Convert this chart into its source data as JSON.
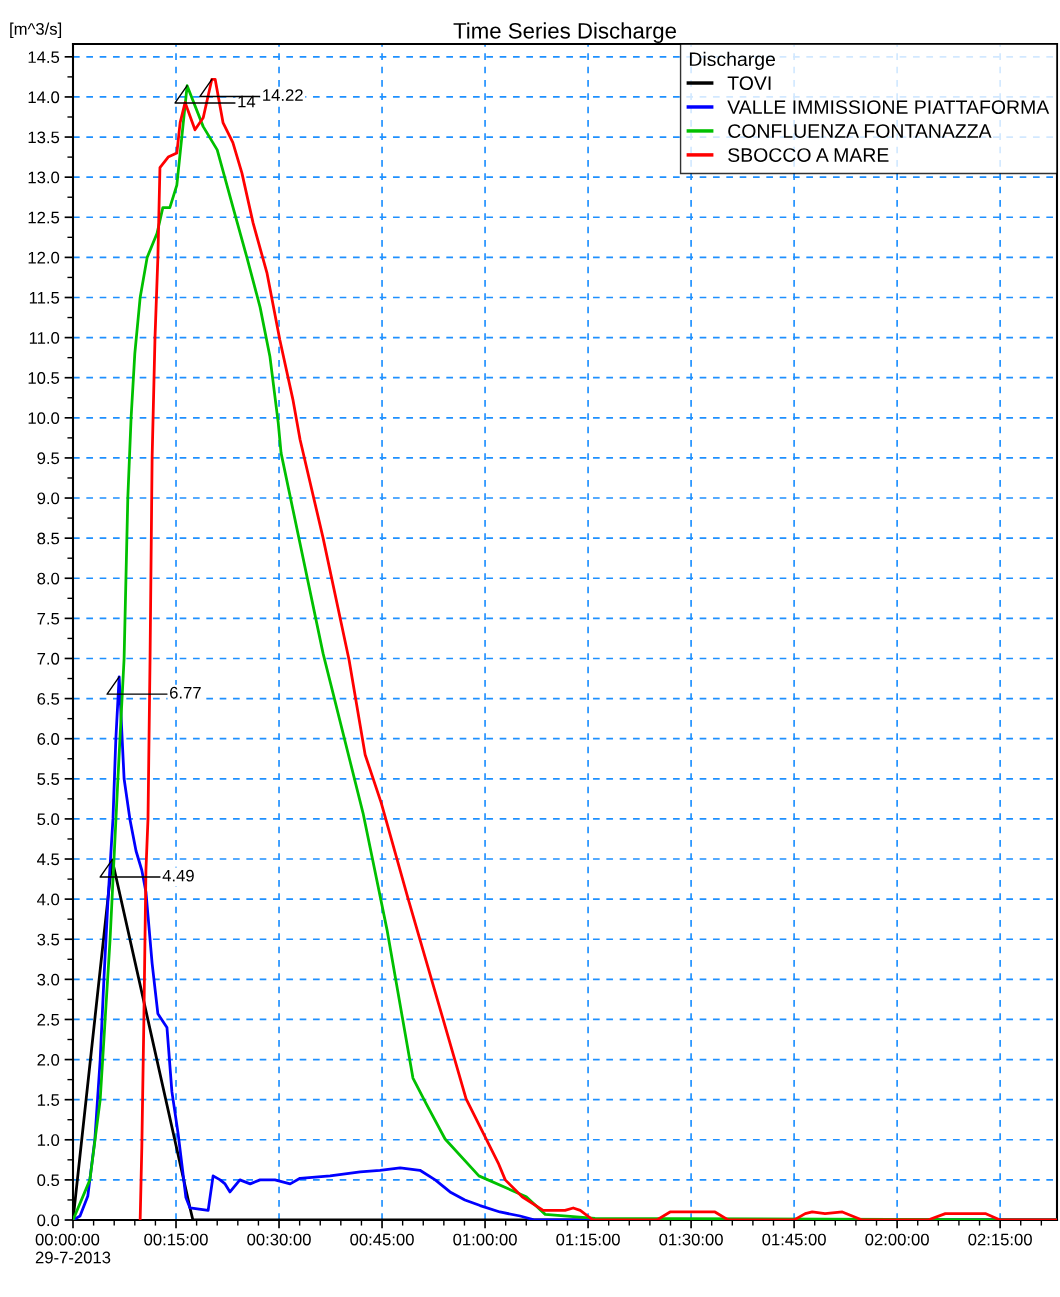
{
  "chart_data": {
    "type": "line",
    "title": "Time Series Discharge",
    "ylabel": "[m^3/s]",
    "legend_title": "Discharge",
    "legend": "top right",
    "grid": true,
    "line_style": "solid",
    "marker": "none",
    "xlim": [
      0,
      2.388
    ],
    "ylim": [
      0,
      14.66
    ],
    "xticks": [
      {
        "value": 0,
        "label": "00:00:00\n29-7-2013"
      },
      {
        "value": 0.25,
        "label": "00:15:00"
      },
      {
        "value": 0.5,
        "label": "00:30:00"
      },
      {
        "value": 0.75,
        "label": "00:45:00"
      },
      {
        "value": 1,
        "label": "01:00:00"
      },
      {
        "value": 1.25,
        "label": "01:15:00"
      },
      {
        "value": 1.5,
        "label": "01:30:00"
      },
      {
        "value": 1.75,
        "label": "01:45:00"
      },
      {
        "value": 2,
        "label": "02:00:00"
      },
      {
        "value": 2.25,
        "label": "02:15:00"
      }
    ],
    "yticks": [
      {
        "value": 0,
        "label": "0.0"
      },
      {
        "value": 0.5,
        "label": "0.5"
      },
      {
        "value": 1,
        "label": "1.0"
      },
      {
        "value": 1.5,
        "label": "1.5"
      },
      {
        "value": 2,
        "label": "2.0"
      },
      {
        "value": 2.5,
        "label": "2.5"
      },
      {
        "value": 3,
        "label": "3.0"
      },
      {
        "value": 3.5,
        "label": "3.5"
      },
      {
        "value": 4,
        "label": "4.0"
      },
      {
        "value": 4.5,
        "label": "4.5"
      },
      {
        "value": 5,
        "label": "5.0"
      },
      {
        "value": 5.5,
        "label": "5.5"
      },
      {
        "value": 6,
        "label": "6.0"
      },
      {
        "value": 6.5,
        "label": "6.5"
      },
      {
        "value": 7,
        "label": "7.0"
      },
      {
        "value": 7.5,
        "label": "7.5"
      },
      {
        "value": 8,
        "label": "8.0"
      },
      {
        "value": 8.5,
        "label": "8.5"
      },
      {
        "value": 9,
        "label": "9.0"
      },
      {
        "value": 9.5,
        "label": "9.5"
      },
      {
        "value": 10,
        "label": "10.0"
      },
      {
        "value": 10.5,
        "label": "10.5"
      },
      {
        "value": 11,
        "label": "11.0"
      },
      {
        "value": 11.5,
        "label": "11.5"
      },
      {
        "value": 12,
        "label": "12.0"
      },
      {
        "value": 12.5,
        "label": "12.5"
      },
      {
        "value": 13,
        "label": "13.0"
      },
      {
        "value": 13.5,
        "label": "13.5"
      },
      {
        "value": 14,
        "label": "14.0"
      },
      {
        "value": 14.5,
        "label": "14.5"
      }
    ],
    "series": [
      {
        "name": "TOVI",
        "color": "#000000",
        "x": [
          0,
          0.095,
          0.284,
          0.291,
          2.388
        ],
        "values": [
          0,
          4.49,
          0.15,
          0,
          0
        ]
      },
      {
        "name": "VALLE IMMISSIONE PIATTAFORMA",
        "color": "#0000ff",
        "x": [
          0,
          0.017,
          0.036,
          0.053,
          0.066,
          0.075,
          0.085,
          0.097,
          0.104,
          0.112,
          0.124,
          0.138,
          0.153,
          0.167,
          0.177,
          0.192,
          0.206,
          0.228,
          0.24,
          0.255,
          0.274,
          0.284,
          0.328,
          0.34,
          0.357,
          0.369,
          0.381,
          0.405,
          0.43,
          0.454,
          0.49,
          0.527,
          0.551,
          0.624,
          0.697,
          0.745,
          0.794,
          0.842,
          0.879,
          0.915,
          0.951,
          0.988,
          1.036,
          1.085,
          1.121,
          2.388
        ],
        "values": [
          0,
          0.05,
          0.3,
          1.0,
          2.0,
          3.0,
          4.0,
          5.0,
          6.0,
          6.77,
          5.5,
          5.0,
          4.6,
          4.36,
          4.09,
          3.2,
          2.57,
          2.4,
          1.6,
          1.08,
          0.28,
          0.15,
          0.12,
          0.55,
          0.5,
          0.45,
          0.35,
          0.5,
          0.45,
          0.5,
          0.5,
          0.45,
          0.52,
          0.55,
          0.6,
          0.62,
          0.65,
          0.62,
          0.5,
          0.35,
          0.25,
          0.18,
          0.1,
          0.05,
          0,
          0
        ]
      },
      {
        "name": "CONFLUENZA FONTANAZZA",
        "color": "#00c000",
        "x": [
          0,
          0.041,
          0.066,
          0.09,
          0.109,
          0.124,
          0.133,
          0.141,
          0.15,
          0.163,
          0.18,
          0.204,
          0.218,
          0.235,
          0.252,
          0.277,
          0.316,
          0.35,
          0.388,
          0.422,
          0.454,
          0.478,
          0.498,
          0.505,
          0.607,
          0.704,
          0.762,
          0.825,
          0.857,
          0.903,
          0.985,
          1.1,
          1.146,
          1.267,
          2.388
        ],
        "values": [
          0,
          0.5,
          1.5,
          3.5,
          5.5,
          7.0,
          9.0,
          10.0,
          10.8,
          11.5,
          12.0,
          12.3,
          12.62,
          12.62,
          12.9,
          14.14,
          13.63,
          13.34,
          12.63,
          12.0,
          11.38,
          10.76,
          9.94,
          9.56,
          7.06,
          5.07,
          3.62,
          1.77,
          1.45,
          1.01,
          0.55,
          0.29,
          0.07,
          0.02,
          0
        ]
      },
      {
        "name": "SBOCCO A MARE",
        "color": "#ff0000",
        "x": [
          0.163,
          0.167,
          0.172,
          0.177,
          0.182,
          0.187,
          0.192,
          0.199,
          0.206,
          0.211,
          0.231,
          0.252,
          0.26,
          0.272,
          0.296,
          0.316,
          0.337,
          0.345,
          0.364,
          0.388,
          0.41,
          0.437,
          0.471,
          0.502,
          0.534,
          0.551,
          0.607,
          0.67,
          0.709,
          0.748,
          0.813,
          0.891,
          0.954,
          1.032,
          1.049,
          1.09,
          1.141,
          1.194,
          1.214,
          1.231,
          1.262,
          1.417,
          1.449,
          1.558,
          1.59,
          1.75,
          1.777,
          1.794,
          1.825,
          1.867,
          1.915,
          2.075,
          2.117,
          2.214,
          2.25,
          2.388
        ],
        "values": [
          0,
          0.9,
          2.5,
          4.36,
          5.0,
          7.0,
          9.5,
          11.0,
          12.0,
          13.12,
          13.25,
          13.3,
          13.68,
          13.93,
          13.59,
          13.74,
          14.22,
          14.22,
          13.68,
          13.43,
          13.05,
          12.43,
          11.8,
          10.97,
          10.22,
          9.73,
          8.5,
          6.98,
          5.8,
          5.2,
          4.01,
          2.63,
          1.51,
          0.71,
          0.5,
          0.29,
          0.12,
          0.12,
          0.15,
          0.12,
          0,
          0,
          0.1,
          0.1,
          0,
          0,
          0.08,
          0.1,
          0.08,
          0.1,
          0,
          0,
          0.08,
          0.08,
          0,
          0
        ]
      }
    ],
    "annotations": [
      {
        "text": "4.49",
        "x": 0.095,
        "y": 4.49
      },
      {
        "text": "6.77",
        "x": 0.112,
        "y": 6.77
      },
      {
        "text": "14",
        "x": 0.277,
        "y": 14.14
      },
      {
        "text": "14.22",
        "x": 0.337,
        "y": 14.22
      }
    ]
  }
}
